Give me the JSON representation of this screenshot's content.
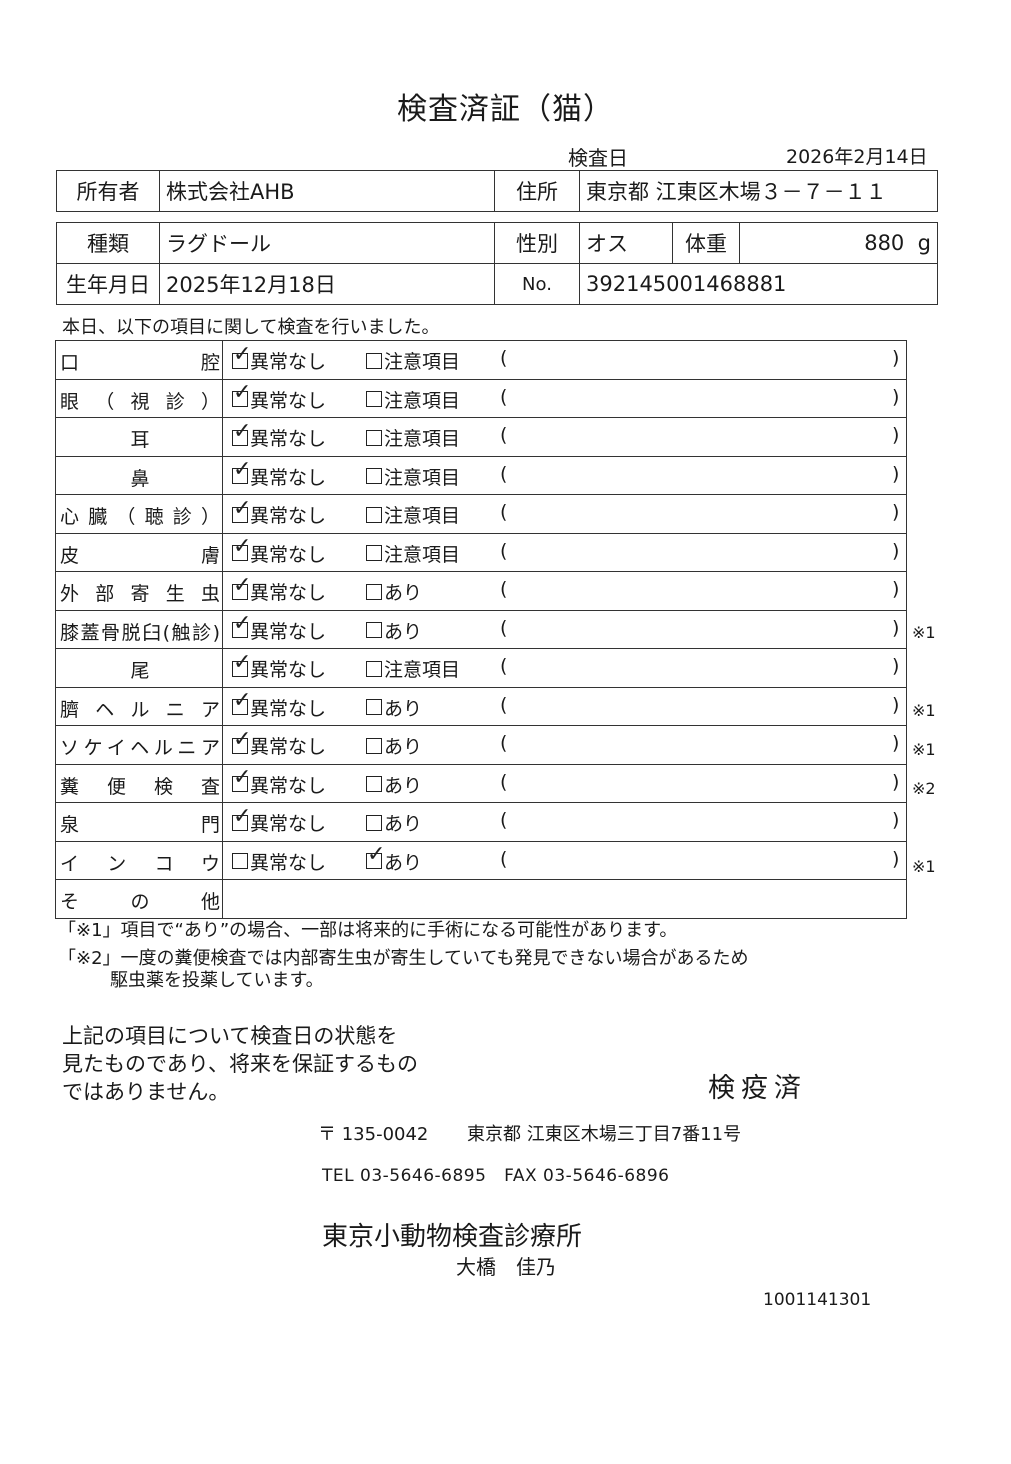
{
  "title": "検査済証（猫）",
  "exam_date": {
    "label": "検査日",
    "value": "2026年2月14日"
  },
  "owner": {
    "label": "所有者",
    "value": "株式会社AHB"
  },
  "address": {
    "label": "住所",
    "value": "東京都 江東区木場３－７－１１"
  },
  "breed": {
    "label": "種類",
    "value": "ラグドール"
  },
  "sex": {
    "label": "性別",
    "value": "オス"
  },
  "weight": {
    "label": "体重",
    "value": "880",
    "unit": "g"
  },
  "birth": {
    "label": "生年月日",
    "value": "2025年12月18日"
  },
  "number": {
    "label": "No.",
    "value": "392145001468881"
  },
  "intro": "本日、以下の項目に関して検査を行いました。",
  "ok_label": "異常なし",
  "paren_open": "(",
  "paren_close": ")",
  "rows": [
    {
      "label": "口腔",
      "alt": "注意項目",
      "checked": "ok",
      "note": ""
    },
    {
      "label": "眼（視診）",
      "alt": "注意項目",
      "checked": "ok",
      "note": ""
    },
    {
      "label": "耳",
      "alt": "注意項目",
      "checked": "ok",
      "note": "",
      "center": true
    },
    {
      "label": "鼻",
      "alt": "注意項目",
      "checked": "ok",
      "note": "",
      "center": true
    },
    {
      "label": "心臓（聴診）",
      "alt": "注意項目",
      "checked": "ok",
      "note": ""
    },
    {
      "label": "皮膚",
      "alt": "注意項目",
      "checked": "ok",
      "note": ""
    },
    {
      "label": "外部寄生虫",
      "alt": "あり",
      "checked": "ok",
      "note": ""
    },
    {
      "label": "膝蓋骨脱臼(触診)",
      "alt": "あり",
      "checked": "ok",
      "note": "※1"
    },
    {
      "label": "尾",
      "alt": "注意項目",
      "checked": "ok",
      "note": "",
      "center": true
    },
    {
      "label": "臍ヘルニア",
      "alt": "あり",
      "checked": "ok",
      "note": "※1"
    },
    {
      "label": "ソケイヘルニア",
      "alt": "あり",
      "checked": "ok",
      "note": "※1"
    },
    {
      "label": "糞便検査",
      "alt": "あり",
      "checked": "ok",
      "note": "※2"
    },
    {
      "label": "泉門",
      "alt": "あり",
      "checked": "ok",
      "note": ""
    },
    {
      "label": "インコウ",
      "alt": "あり",
      "checked": "alt",
      "note": "※1"
    },
    {
      "label": "その他",
      "alt": "",
      "checked": "",
      "note": "",
      "other": true
    }
  ],
  "footnote1": "「※1」項目で“あり”の場合、一部は将来的に手術になる可能性があります。",
  "footnote2a": "「※2」一度の糞便検査では内部寄生虫が寄生していても発見できない場合があるため",
  "footnote2b": "駆虫薬を投薬しています。",
  "disclaimer": [
    "上記の項目について検査日の状態を",
    "見たものであり、将来を保証するもの",
    "ではありません。"
  ],
  "stamp": "検疫済",
  "postal": "〒 135-0042",
  "clinic_address": "東京都 江東区木場三丁目7番11号",
  "tel": "TEL 03-5646-6895",
  "fax": "FAX 03-5646-6896",
  "clinic_name": "東京小動物検査診療所",
  "vet_name": "大橋　佳乃",
  "serial": "1001141301"
}
